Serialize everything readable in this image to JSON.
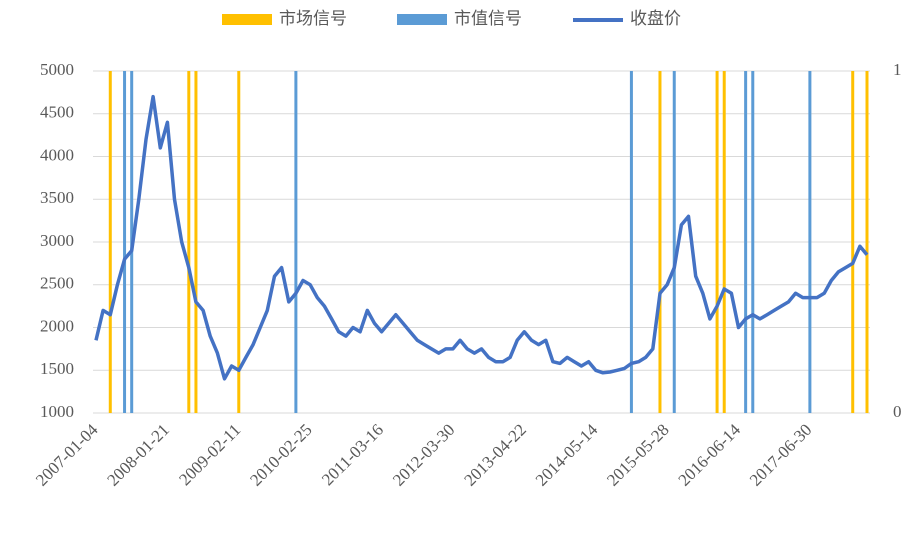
{
  "chart_data": {
    "type": "line",
    "categories": [
      "2007-01-04",
      null,
      null,
      null,
      null,
      null,
      null,
      null,
      null,
      null,
      "2008-01-21",
      null,
      null,
      null,
      null,
      null,
      null,
      null,
      null,
      null,
      "2009-02-11",
      null,
      null,
      null,
      null,
      null,
      null,
      null,
      null,
      null,
      "2010-02-25",
      null,
      null,
      null,
      null,
      null,
      null,
      null,
      null,
      null,
      "2011-03-16",
      null,
      null,
      null,
      null,
      null,
      null,
      null,
      null,
      null,
      "2012-03-30",
      null,
      null,
      null,
      null,
      null,
      null,
      null,
      null,
      null,
      "2013-04-22",
      null,
      null,
      null,
      null,
      null,
      null,
      null,
      null,
      null,
      "2014-05-14",
      null,
      null,
      null,
      null,
      null,
      null,
      null,
      null,
      null,
      "2015-05-28",
      null,
      null,
      null,
      null,
      null,
      null,
      null,
      null,
      null,
      "2016-06-14",
      null,
      null,
      null,
      null,
      null,
      null,
      null,
      null,
      null,
      "2017-06-30",
      null,
      null,
      null,
      null,
      null,
      null,
      null,
      null
    ],
    "series": [
      {
        "name": "市场信号",
        "type": "bar",
        "axis": "y2",
        "color": "#FFC000",
        "values": [
          0,
          0,
          1,
          0,
          0,
          0,
          0,
          0,
          0,
          0,
          0,
          0,
          0,
          1,
          1,
          0,
          0,
          0,
          0,
          0,
          1,
          0,
          0,
          0,
          0,
          0,
          0,
          0,
          0,
          0,
          0,
          0,
          0,
          0,
          0,
          0,
          0,
          0,
          0,
          0,
          0,
          0,
          0,
          0,
          0,
          0,
          0,
          0,
          0,
          0,
          0,
          0,
          0,
          0,
          0,
          0,
          0,
          0,
          0,
          0,
          0,
          0,
          0,
          0,
          0,
          0,
          0,
          0,
          0,
          0,
          0,
          0,
          0,
          0,
          0,
          0,
          0,
          0,
          0,
          1,
          0,
          0,
          0,
          0,
          0,
          0,
          0,
          1,
          1,
          0,
          0,
          0,
          0,
          0,
          0,
          0,
          0,
          0,
          0,
          0,
          0,
          0,
          0,
          0,
          0,
          0,
          1,
          0,
          1
        ]
      },
      {
        "name": "市值信号",
        "type": "bar",
        "axis": "y2",
        "color": "#5B9BD5",
        "values": [
          0,
          0,
          0,
          0,
          1,
          1,
          0,
          0,
          0,
          0,
          0,
          0,
          0,
          0,
          0,
          0,
          0,
          0,
          0,
          0,
          0,
          0,
          0,
          0,
          0,
          0,
          0,
          0,
          1,
          0,
          0,
          0,
          0,
          0,
          0,
          0,
          0,
          0,
          0,
          0,
          0,
          0,
          0,
          0,
          0,
          0,
          0,
          0,
          0,
          0,
          0,
          0,
          0,
          0,
          0,
          0,
          0,
          0,
          0,
          0,
          0,
          0,
          0,
          0,
          0,
          0,
          0,
          0,
          0,
          0,
          0,
          0,
          0,
          0,
          0,
          1,
          0,
          0,
          0,
          0,
          0,
          1,
          0,
          0,
          0,
          0,
          0,
          0,
          0,
          0,
          0,
          1,
          1,
          0,
          0,
          0,
          0,
          0,
          0,
          0,
          1,
          0,
          0,
          0,
          0,
          0,
          0,
          0,
          0
        ]
      },
      {
        "name": "收盘价",
        "type": "line",
        "color": "#4472C4",
        "values": [
          1850,
          2200,
          2150,
          2500,
          2800,
          2900,
          3500,
          4200,
          4700,
          4100,
          4400,
          3500,
          3000,
          2700,
          2300,
          2200,
          1900,
          1700,
          1400,
          1550,
          1500,
          1650,
          1800,
          2000,
          2200,
          2600,
          2700,
          2300,
          2400,
          2550,
          2500,
          2350,
          2250,
          2100,
          1950,
          1900,
          2000,
          1950,
          2200,
          2050,
          1950,
          2050,
          2150,
          2050,
          1950,
          1850,
          1800,
          1750,
          1700,
          1750,
          1750,
          1850,
          1750,
          1700,
          1750,
          1650,
          1600,
          1600,
          1650,
          1850,
          1950,
          1850,
          1800,
          1850,
          1600,
          1580,
          1650,
          1600,
          1550,
          1600,
          1500,
          1470,
          1480,
          1500,
          1520,
          1580,
          1600,
          1650,
          1750,
          2400,
          2500,
          2700,
          3200,
          3300,
          2600,
          2400,
          2100,
          2250,
          2450,
          2400,
          2000,
          2100,
          2150,
          2100,
          2150,
          2200,
          2250,
          2300,
          2400,
          2350,
          2350,
          2350,
          2400,
          2550,
          2650,
          2700,
          2750,
          2950,
          2850
        ]
      }
    ],
    "ylim": [
      1000,
      5000
    ],
    "yticks": [
      1000,
      1500,
      2000,
      2500,
      3000,
      3500,
      4000,
      4500,
      5000
    ],
    "y2lim": [
      0,
      1
    ],
    "y2ticks": [
      0,
      1
    ],
    "grid": true,
    "legend": "top"
  }
}
